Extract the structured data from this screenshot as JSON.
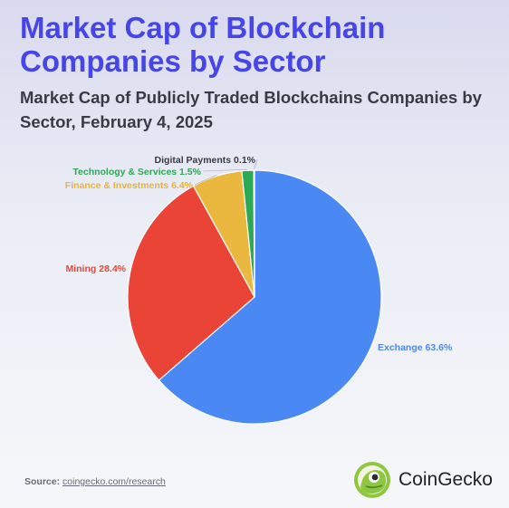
{
  "header": {
    "title_line1": "Market Cap of Blockchain",
    "title_line2": "Companies by Sector",
    "subtitle": "Market Cap of Publicly Traded Blockchains Companies by Sector, February 4, 2025"
  },
  "chart_data": {
    "type": "pie",
    "title": "Market Cap of Publicly Traded Blockchains Companies by Sector, February 4, 2025",
    "unit": "%",
    "slices": [
      {
        "label": "Exchange",
        "value": 63.6,
        "color": "#4a89f3",
        "label_color": "#4a89f3",
        "display": "Exchange 63.6%"
      },
      {
        "label": "Mining",
        "value": 28.4,
        "color": "#e94436",
        "label_color": "#e94436",
        "display": "Mining 28.4%"
      },
      {
        "label": "Finance & Investments",
        "value": 6.4,
        "color": "#eab83f",
        "label_color": "#e8b33a",
        "display": "Finance & Investments 6.4%"
      },
      {
        "label": "Technology & Services",
        "value": 1.5,
        "color": "#2ca954",
        "label_color": "#2ca954",
        "display": "Technology & Services 1.5%"
      },
      {
        "label": "Digital Payments",
        "value": 0.1,
        "color": "#3a3a44",
        "label_color": "#3a3a44",
        "display": "Digital Payments 0.1%"
      }
    ]
  },
  "footer": {
    "source_label": "Source:",
    "source_link": "coingecko.com/research",
    "brand_name": "CoinGecko",
    "logo_icon": "gecko-logo-icon"
  }
}
